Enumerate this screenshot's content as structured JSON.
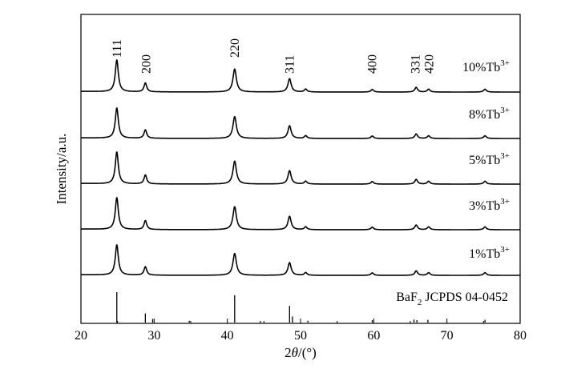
{
  "chart_data": {
    "type": "line",
    "xlabel_prefix": "2",
    "xlabel_theta": "θ",
    "xlabel_unit": "/(°)",
    "ylabel": "Intensity/a.u.",
    "xlim": [
      20,
      80
    ],
    "x_ticks": [
      "20",
      "30",
      "40",
      "50",
      "60",
      "70",
      "80"
    ],
    "peaks": [
      {
        "x": 24.9,
        "h": 1.0
      },
      {
        "x": 28.8,
        "h": 0.28
      },
      {
        "x": 41.0,
        "h": 0.72
      },
      {
        "x": 48.5,
        "h": 0.42
      },
      {
        "x": 50.7,
        "h": 0.09
      },
      {
        "x": 59.8,
        "h": 0.08
      },
      {
        "x": 65.8,
        "h": 0.15
      },
      {
        "x": 67.5,
        "h": 0.09
      },
      {
        "x": 75.2,
        "h": 0.09
      }
    ],
    "series": [
      {
        "name_prefix": "10%Tb",
        "name_sup": "3+"
      },
      {
        "name_prefix": "8%Tb",
        "name_sup": "3+"
      },
      {
        "name_prefix": "5%Tb",
        "name_sup": "3+"
      },
      {
        "name_prefix": "3%Tb",
        "name_sup": "3+"
      },
      {
        "name_prefix": "1%Tb",
        "name_sup": "3+"
      }
    ],
    "reference": {
      "label_main": "BaF",
      "label_sub": "2",
      "label_rest": " JCPDS 04-0452",
      "lines": [
        {
          "x": 24.9,
          "h": 1.0
        },
        {
          "x": 28.8,
          "h": 0.3
        },
        {
          "x": 29.8,
          "h": 0.12
        },
        {
          "x": 34.8,
          "h": 0.06
        },
        {
          "x": 41.0,
          "h": 0.9
        },
        {
          "x": 44.5,
          "h": 0.05
        },
        {
          "x": 48.5,
          "h": 0.55
        },
        {
          "x": 48.9,
          "h": 0.2
        },
        {
          "x": 51.0,
          "h": 0.06
        },
        {
          "x": 59.8,
          "h": 0.08
        },
        {
          "x": 65.5,
          "h": 0.1
        },
        {
          "x": 65.9,
          "h": 0.08
        },
        {
          "x": 67.4,
          "h": 0.09
        },
        {
          "x": 75.2,
          "h": 0.09
        }
      ]
    },
    "annotations": [
      {
        "label": "111",
        "x": 24.9
      },
      {
        "label": "200",
        "x": 28.9
      },
      {
        "label": "220",
        "x": 41.0
      },
      {
        "label": "311",
        "x": 48.5
      },
      {
        "label": "400",
        "x": 59.8
      },
      {
        "label": "331",
        "x": 65.7
      },
      {
        "label": "420",
        "x": 67.6
      }
    ]
  }
}
